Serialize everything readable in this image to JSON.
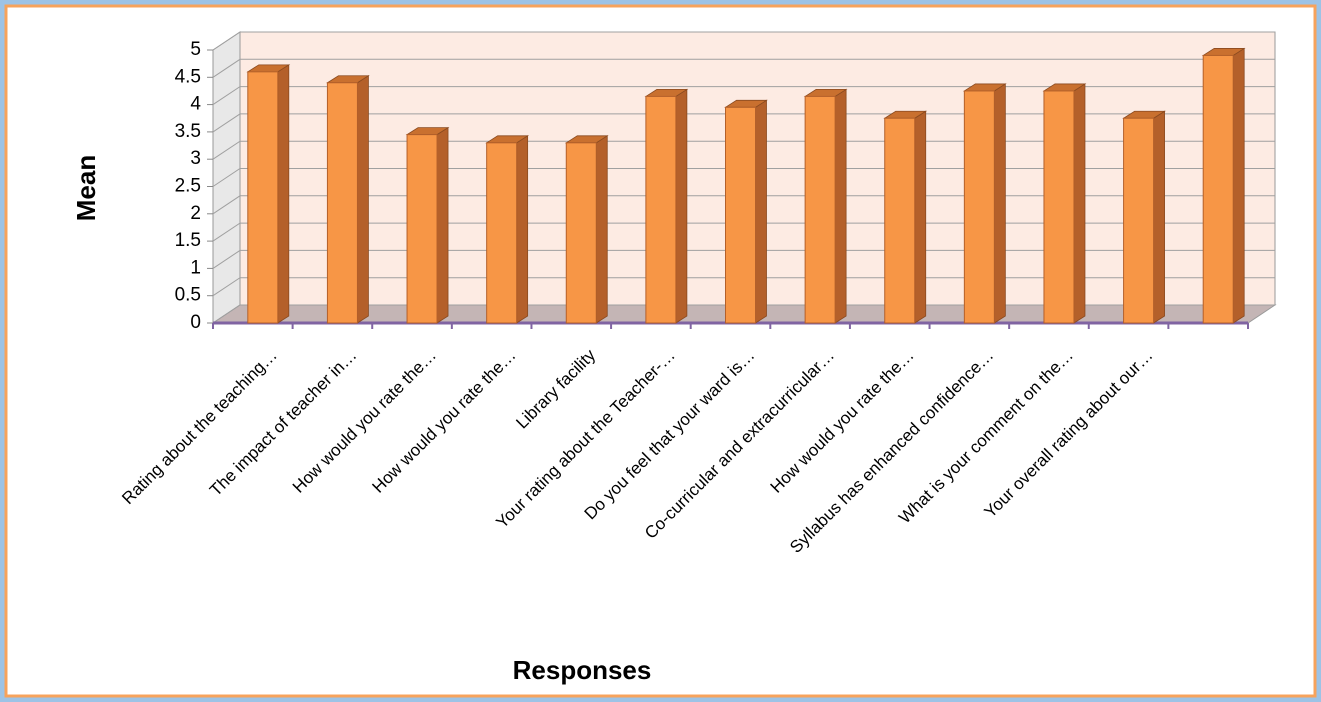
{
  "chart_data": {
    "type": "bar3d",
    "y_label": "Mean",
    "x_label": "Responses",
    "categories": [
      "Rating about the teaching…",
      "The impact of teacher in…",
      "How would you rate the…",
      "How would you rate the…",
      "Library facility",
      "Your rating about the Teacher-…",
      "Do you feel that your ward is…",
      "Co-curricular and extracurricular…",
      "How would you rate the…",
      "Syllabus has enhanced confidence…",
      "What is your comment on the…",
      "Your overall rating about our…",
      null
    ],
    "values": [
      4.6,
      4.4,
      3.45,
      3.3,
      3.3,
      4.15,
      3.95,
      4.15,
      3.75,
      4.25,
      4.25,
      3.75,
      4.9
    ],
    "color": "#f79646",
    "ylim": [
      0,
      5
    ],
    "yticks": [
      0,
      0.5,
      1,
      1.5,
      2,
      2.5,
      3,
      3.5,
      4,
      4.5,
      5
    ],
    "grid": true
  }
}
